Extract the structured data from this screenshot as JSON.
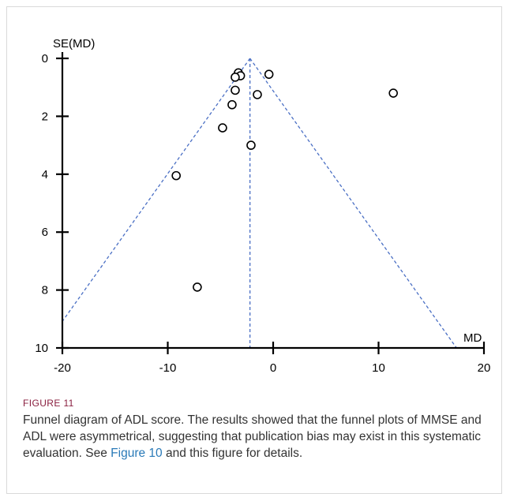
{
  "chart_data": {
    "type": "scatter",
    "ylabel": "SE(MD)",
    "xlabel": "MD",
    "xlim": [
      -20,
      20
    ],
    "ylim": [
      0,
      10
    ],
    "y_inverted": true,
    "x_ticks": [
      -20,
      -10,
      0,
      10,
      20
    ],
    "y_ticks": [
      0,
      2,
      4,
      6,
      8,
      10
    ],
    "x_tick_labels": [
      "-20",
      "-10",
      "0",
      "10",
      "20"
    ],
    "y_tick_labels": [
      "0",
      "2",
      "4",
      "6",
      "8",
      "10"
    ],
    "pooled_md": -2.2,
    "funnel_color": "#4a6fc4",
    "points": [
      {
        "x": -3.3,
        "y": 0.5
      },
      {
        "x": -3.1,
        "y": 0.6
      },
      {
        "x": -3.6,
        "y": 0.65
      },
      {
        "x": -0.4,
        "y": 0.55
      },
      {
        "x": 11.4,
        "y": 1.2
      },
      {
        "x": -3.6,
        "y": 1.1
      },
      {
        "x": -1.5,
        "y": 1.25
      },
      {
        "x": -3.9,
        "y": 1.6
      },
      {
        "x": -4.8,
        "y": 2.4
      },
      {
        "x": -2.1,
        "y": 3.0
      },
      {
        "x": -9.2,
        "y": 4.05
      },
      {
        "x": -7.2,
        "y": 7.9
      }
    ]
  },
  "caption": {
    "label": "FIGURE 11",
    "text": "Funnel diagram of ADL score. The results showed that the funnel plots of MMSE and ADL were asymmetrical, suggesting that publication bias may exist in this systematic evaluation. See ",
    "link": "Figure 10",
    "text_end": " and this figure for details."
  }
}
